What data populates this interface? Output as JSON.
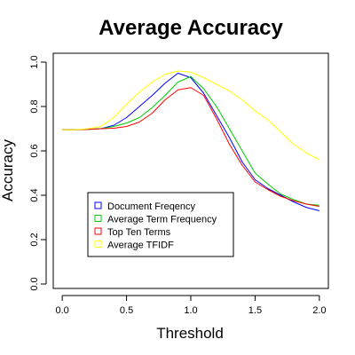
{
  "chart_data": {
    "type": "line",
    "title": "Average Accuracy",
    "xlabel": "Threshold",
    "ylabel": "Accuracy",
    "xlim": [
      -0.07,
      2.07
    ],
    "ylim": [
      -0.02,
      1.04
    ],
    "xticks": [
      "0.0",
      "0.5",
      "1.0",
      "1.5",
      "2.0"
    ],
    "xtick_values": [
      0.0,
      0.5,
      1.0,
      1.5,
      2.0
    ],
    "yticks": [
      "0.0",
      "0.2",
      "0.4",
      "0.6",
      "0.8",
      "1.0"
    ],
    "ytick_values": [
      0.0,
      0.2,
      0.4,
      0.6,
      0.8,
      1.0
    ],
    "grid": false,
    "legend_position": "bottom-left",
    "x": [
      0.0,
      0.1,
      0.2,
      0.3,
      0.4,
      0.5,
      0.6,
      0.7,
      0.8,
      0.9,
      1.0,
      1.1,
      1.2,
      1.3,
      1.4,
      1.5,
      1.6,
      1.7,
      1.8,
      1.9,
      2.0
    ],
    "series": [
      {
        "name": "Document Freqency",
        "color": "#0000ff",
        "values": [
          0.695,
          0.695,
          0.697,
          0.7,
          0.715,
          0.75,
          0.8,
          0.85,
          0.905,
          0.95,
          0.93,
          0.86,
          0.76,
          0.66,
          0.55,
          0.47,
          0.43,
          0.4,
          0.37,
          0.345,
          0.33
        ]
      },
      {
        "name": "Average Term Frequency",
        "color": "#00cc00",
        "values": [
          0.695,
          0.695,
          0.697,
          0.7,
          0.71,
          0.725,
          0.75,
          0.795,
          0.85,
          0.91,
          0.935,
          0.88,
          0.8,
          0.7,
          0.6,
          0.5,
          0.45,
          0.405,
          0.38,
          0.36,
          0.355
        ]
      },
      {
        "name": "Top Ten Terms",
        "color": "#ff0000",
        "values": [
          0.695,
          0.695,
          0.697,
          0.7,
          0.702,
          0.71,
          0.73,
          0.77,
          0.83,
          0.875,
          0.885,
          0.85,
          0.745,
          0.63,
          0.535,
          0.46,
          0.425,
          0.395,
          0.375,
          0.36,
          0.35
        ]
      },
      {
        "name": "Average TFIDF",
        "color": "#ffff00",
        "values": [
          0.695,
          0.695,
          0.7,
          0.71,
          0.75,
          0.81,
          0.865,
          0.91,
          0.945,
          0.96,
          0.955,
          0.93,
          0.9,
          0.87,
          0.83,
          0.78,
          0.74,
          0.685,
          0.63,
          0.59,
          0.56
        ]
      }
    ]
  }
}
